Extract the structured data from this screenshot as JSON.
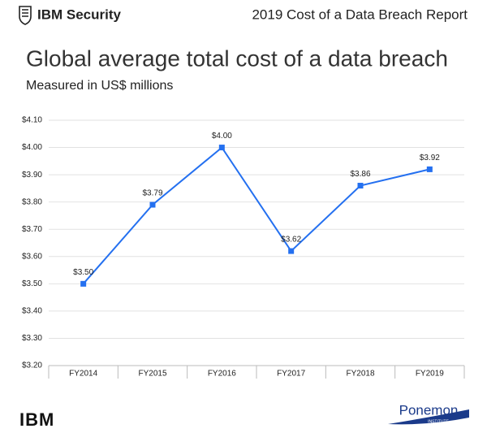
{
  "header": {
    "brand": "IBM Security",
    "report": "2019 Cost of a Data Breach Report"
  },
  "chart_data": {
    "type": "line",
    "title": "Global average total cost of a data breach",
    "subtitle": "Measured in US$ millions",
    "categories": [
      "FY2014",
      "FY2015",
      "FY2016",
      "FY2017",
      "FY2018",
      "FY2019"
    ],
    "series": [
      {
        "color": "#2470f0",
        "values": [
          3.5,
          3.79,
          4.0,
          3.62,
          3.86,
          3.92
        ],
        "value_labels": [
          "$3.50",
          "$3.79",
          "$4.00",
          "$3.62",
          "$3.86",
          "$3.92"
        ]
      }
    ],
    "ylim": [
      3.2,
      4.1
    ],
    "yticks": [
      {
        "value": 3.2,
        "label": "$3.20"
      },
      {
        "value": 3.3,
        "label": "$3.30"
      },
      {
        "value": 3.4,
        "label": "$3.40"
      },
      {
        "value": 3.5,
        "label": "$3.50"
      },
      {
        "value": 3.6,
        "label": "$3.60"
      },
      {
        "value": 3.7,
        "label": "$3.70"
      },
      {
        "value": 3.8,
        "label": "$3.80"
      },
      {
        "value": 3.9,
        "label": "$3.90"
      },
      {
        "value": 4.0,
        "label": "$4.00"
      },
      {
        "value": 4.1,
        "label": "$4.10"
      }
    ],
    "grid": true
  },
  "footer": {
    "left_logo": "IBM",
    "right_logo": "Ponemon",
    "right_logo_sub": "INSTITUTE"
  }
}
